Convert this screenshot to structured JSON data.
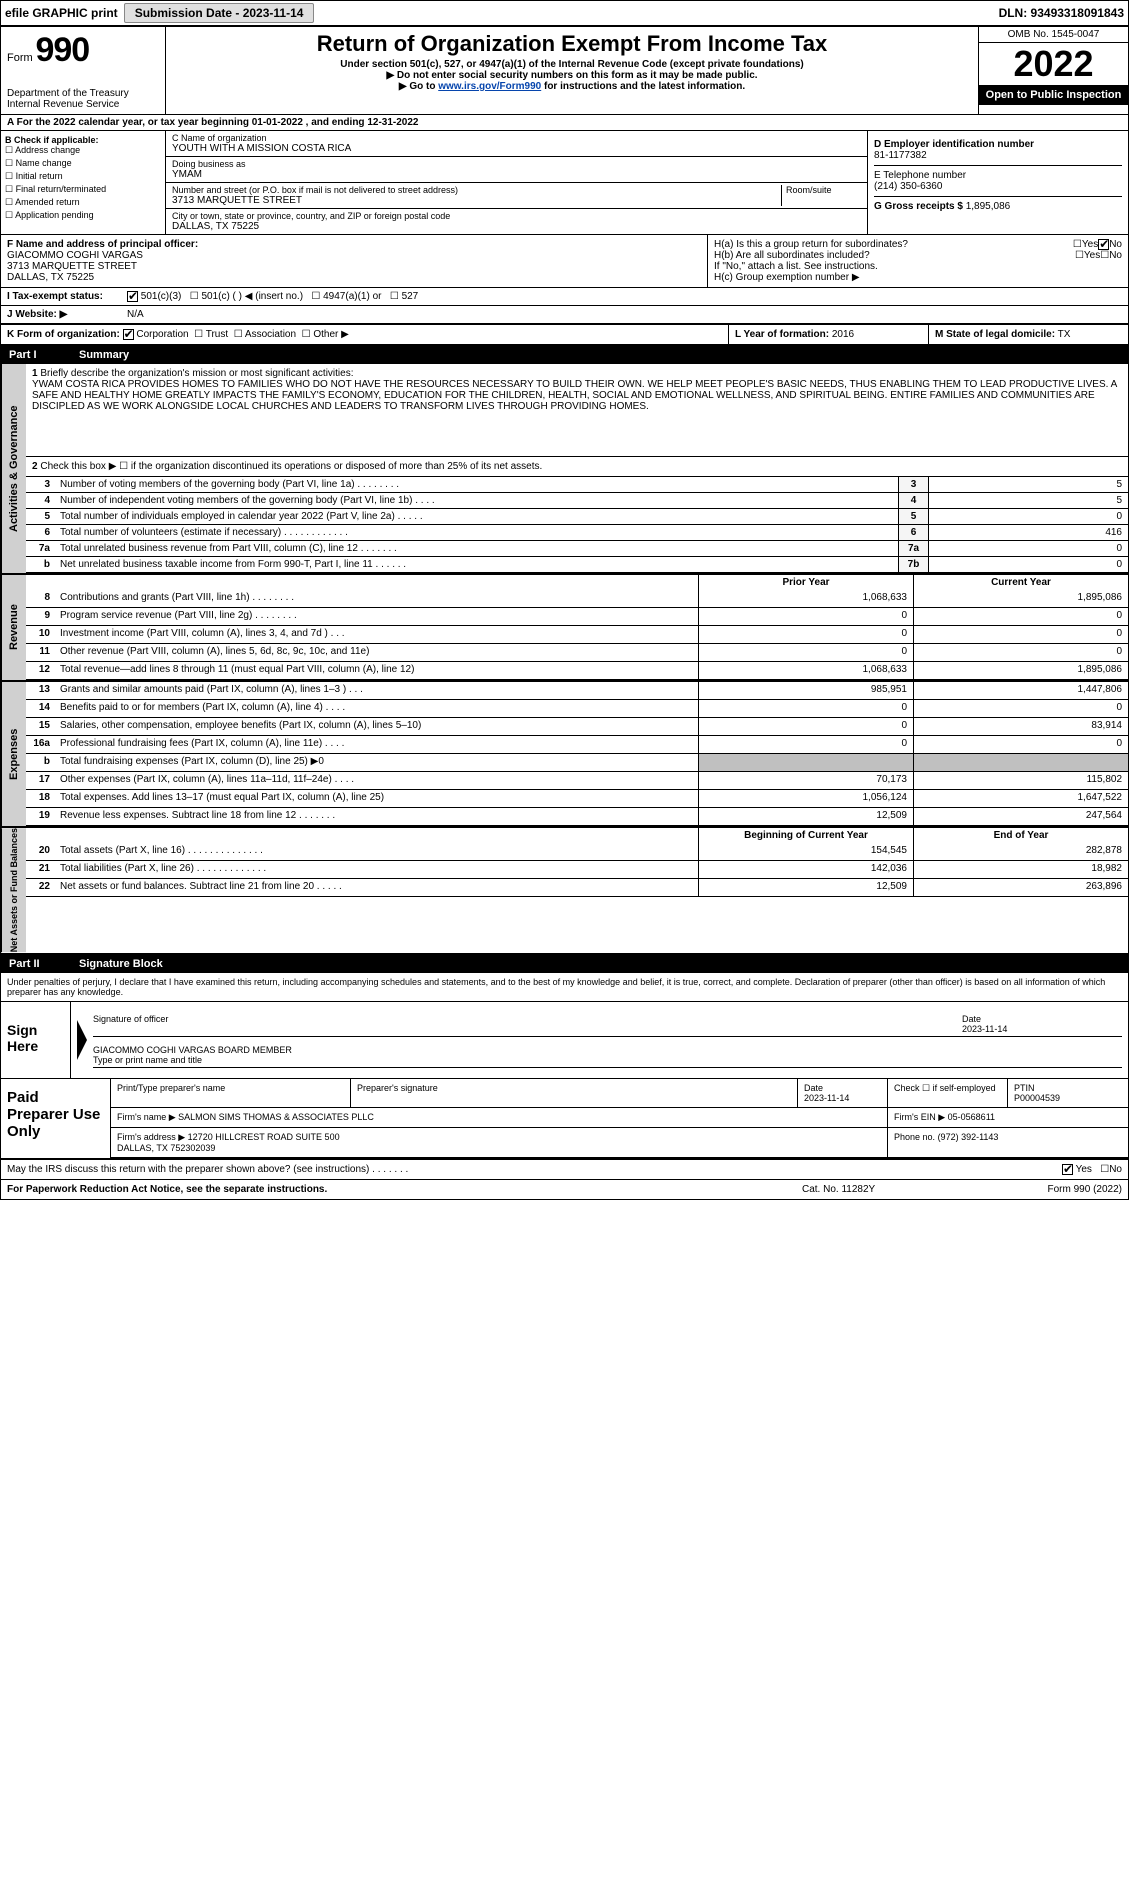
{
  "top_bar": {
    "efile_label": "efile GRAPHIC print",
    "submission_label": "Submission Date - 2023-11-14",
    "dln_label": "DLN: 93493318091843"
  },
  "header": {
    "form_prefix": "Form",
    "form_number": "990",
    "dept": "Department of the Treasury\nInternal Revenue Service",
    "title": "Return of Organization Exempt From Income Tax",
    "subtitle": "Under section 501(c), 527, or 4947(a)(1) of the Internal Revenue Code (except private foundations)",
    "note1": "▶ Do not enter social security numbers on this form as it may be made public.",
    "note2_prefix": "▶ Go to ",
    "note2_link": "www.irs.gov/Form990",
    "note2_suffix": " for instructions and the latest information.",
    "omb": "OMB No. 1545-0047",
    "year": "2022",
    "inspection": "Open to Public Inspection"
  },
  "line_a": "A For the 2022 calendar year, or tax year beginning 01-01-2022  , and ending 12-31-2022",
  "box_b": {
    "header": "B Check if applicable:",
    "items": [
      "Address change",
      "Name change",
      "Initial return",
      "Final return/terminated",
      "Amended return",
      "Application pending"
    ]
  },
  "box_c": {
    "name_label": "C Name of organization",
    "name": "YOUTH WITH A MISSION COSTA RICA",
    "dba_label": "Doing business as",
    "dba": "YMAM",
    "street_label": "Number and street (or P.O. box if mail is not delivered to street address)",
    "street": "3713 MARQUETTE STREET",
    "room_label": "Room/suite",
    "city_label": "City or town, state or province, country, and ZIP or foreign postal code",
    "city": "DALLAS, TX  75225"
  },
  "box_d": {
    "ein_label": "D Employer identification number",
    "ein": "81-1177382",
    "phone_label": "E Telephone number",
    "phone": "(214) 350-6360",
    "gross_label": "G Gross receipts $",
    "gross": "1,895,086"
  },
  "box_f": {
    "label": "F  Name and address of principal officer:",
    "name": "GIACOMMO COGHI VARGAS",
    "street": "3713 MARQUETTE STREET",
    "city": "DALLAS, TX  75225"
  },
  "box_h": {
    "ha": "H(a)  Is this a group return for subordinates?",
    "hb": "H(b)  Are all subordinates included?",
    "hb_note": "If \"No,\" attach a list. See instructions.",
    "hc": "H(c)  Group exemption number ▶",
    "yes": "Yes",
    "no": "No"
  },
  "row_i": {
    "label": "I  Tax-exempt status:",
    "opt1": "501(c)(3)",
    "opt2": "501(c) (   ) ◀ (insert no.)",
    "opt3": "4947(a)(1) or",
    "opt4": "527"
  },
  "row_j": {
    "label": "J  Website: ▶",
    "value": "N/A"
  },
  "row_k": {
    "label": "K Form of organization:",
    "opts": [
      "Corporation",
      "Trust",
      "Association",
      "Other ▶"
    ]
  },
  "row_l": {
    "label": "L Year of formation:",
    "value": "2016"
  },
  "row_m": {
    "label": "M State of legal domicile:",
    "value": "TX"
  },
  "parts": {
    "p1_num": "Part I",
    "p1_title": "Summary",
    "p2_num": "Part II",
    "p2_title": "Signature Block"
  },
  "side_tabs": {
    "ag": "Activities & Governance",
    "rev": "Revenue",
    "exp": "Expenses",
    "nab": "Net Assets or Fund Balances"
  },
  "summary": {
    "line1_label": "Briefly describe the organization's mission or most significant activities:",
    "mission": "YWAM COSTA RICA PROVIDES HOMES TO FAMILIES WHO DO NOT HAVE THE RESOURCES NECESSARY TO BUILD THEIR OWN. WE HELP MEET PEOPLE'S BASIC NEEDS, THUS ENABLING THEM TO LEAD PRODUCTIVE LIVES. A SAFE AND HEALTHY HOME GREATLY IMPACTS THE FAMILY'S ECONOMY, EDUCATION FOR THE CHILDREN, HEALTH, SOCIAL AND EMOTIONAL WELLNESS, AND SPIRITUAL BEING. ENTIRE FAMILIES AND COMMUNITIES ARE DISCIPLED AS WE WORK ALONGSIDE LOCAL CHURCHES AND LEADERS TO TRANSFORM LIVES THROUGH PROVIDING HOMES.",
    "line2": "Check this box ▶ ☐ if the organization discontinued its operations or disposed of more than 25% of its net assets.",
    "lines_numbered": [
      {
        "n": "3",
        "desc": "Number of voting members of the governing body (Part VI, line 1a)  .   .   .   .   .   .   .   .",
        "cell": "3",
        "val": "5"
      },
      {
        "n": "4",
        "desc": "Number of independent voting members of the governing body (Part VI, line 1b)  .   .   .   .",
        "cell": "4",
        "val": "5"
      },
      {
        "n": "5",
        "desc": "Total number of individuals employed in calendar year 2022 (Part V, line 2a)  .   .   .   .   .",
        "cell": "5",
        "val": "0"
      },
      {
        "n": "6",
        "desc": "Total number of volunteers (estimate if necessary)  .   .   .   .   .   .   .   .   .   .   .   .",
        "cell": "6",
        "val": "416"
      },
      {
        "n": "7a",
        "desc": "Total unrelated business revenue from Part VIII, column (C), line 12  .   .   .   .   .   .   .",
        "cell": "7a",
        "val": "0"
      },
      {
        "n": "b",
        "desc": "Net unrelated business taxable income from Form 990-T, Part I, line 11  .   .   .   .   .   .",
        "cell": "7b",
        "val": "0"
      }
    ],
    "col_headers": {
      "py": "Prior Year",
      "cy": "Current Year",
      "boy": "Beginning of Current Year",
      "eoy": "End of Year"
    },
    "revenue": [
      {
        "n": "8",
        "desc": "Contributions and grants (Part VIII, line 1h)  .   .   .   .   .   .   .   .",
        "c1": "1,068,633",
        "c2": "1,895,086"
      },
      {
        "n": "9",
        "desc": "Program service revenue (Part VIII, line 2g)  .   .   .   .   .   .   .   .",
        "c1": "0",
        "c2": "0"
      },
      {
        "n": "10",
        "desc": "Investment income (Part VIII, column (A), lines 3, 4, and 7d )  .   .   .",
        "c1": "0",
        "c2": "0"
      },
      {
        "n": "11",
        "desc": "Other revenue (Part VIII, column (A), lines 5, 6d, 8c, 9c, 10c, and 11e)",
        "c1": "0",
        "c2": "0"
      },
      {
        "n": "12",
        "desc": "Total revenue—add lines 8 through 11 (must equal Part VIII, column (A), line 12)",
        "c1": "1,068,633",
        "c2": "1,895,086"
      }
    ],
    "expenses": [
      {
        "n": "13",
        "desc": "Grants and similar amounts paid (Part IX, column (A), lines 1–3 )  .   .   .",
        "c1": "985,951",
        "c2": "1,447,806"
      },
      {
        "n": "14",
        "desc": "Benefits paid to or for members (Part IX, column (A), line 4)  .   .   .   .",
        "c1": "0",
        "c2": "0"
      },
      {
        "n": "15",
        "desc": "Salaries, other compensation, employee benefits (Part IX, column (A), lines 5–10)",
        "c1": "0",
        "c2": "83,914"
      },
      {
        "n": "16a",
        "desc": "Professional fundraising fees (Part IX, column (A), line 11e)  .   .   .   .",
        "c1": "0",
        "c2": "0"
      },
      {
        "n": "b",
        "desc": "Total fundraising expenses (Part IX, column (D), line 25) ▶0",
        "shaded": true
      },
      {
        "n": "17",
        "desc": "Other expenses (Part IX, column (A), lines 11a–11d, 11f–24e)  .   .   .   .",
        "c1": "70,173",
        "c2": "115,802"
      },
      {
        "n": "18",
        "desc": "Total expenses. Add lines 13–17 (must equal Part IX, column (A), line 25)",
        "c1": "1,056,124",
        "c2": "1,647,522"
      },
      {
        "n": "19",
        "desc": "Revenue less expenses. Subtract line 18 from line 12  .   .   .   .   .   .   .",
        "c1": "12,509",
        "c2": "247,564"
      }
    ],
    "net_assets": [
      {
        "n": "20",
        "desc": "Total assets (Part X, line 16)  .   .   .   .   .   .   .   .   .   .   .   .   .   .",
        "c1": "154,545",
        "c2": "282,878"
      },
      {
        "n": "21",
        "desc": "Total liabilities (Part X, line 26)  .   .   .   .   .   .   .   .   .   .   .   .   .",
        "c1": "142,036",
        "c2": "18,982"
      },
      {
        "n": "22",
        "desc": "Net assets or fund balances. Subtract line 21 from line 20  .   .   .   .   .",
        "c1": "12,509",
        "c2": "263,896"
      }
    ]
  },
  "penalty": "Under penalties of perjury, I declare that I have examined this return, including accompanying schedules and statements, and to the best of my knowledge and belief, it is true, correct, and complete. Declaration of preparer (other than officer) is based on all information of which preparer has any knowledge.",
  "sign": {
    "label": "Sign Here",
    "sig_of_officer": "Signature of officer",
    "date_label": "Date",
    "date": "2023-11-14",
    "name": "GIACOMMO COGHI VARGAS BOARD MEMBER",
    "name_label": "Type or print name and title"
  },
  "preparer": {
    "label": "Paid Preparer Use Only",
    "h1": "Print/Type preparer's name",
    "h2": "Preparer's signature",
    "h3": "Date",
    "date": "2023-11-14",
    "h4_a": "Check ☐ if self-employed",
    "h5": "PTIN",
    "ptin": "P00004539",
    "firm_name_label": "Firm's name    ▶",
    "firm_name": "SALMON SIMS THOMAS & ASSOCIATES PLLC",
    "firm_ein_label": "Firm's EIN ▶",
    "firm_ein": "05-0568611",
    "firm_addr_label": "Firm's address ▶",
    "firm_addr": "12720 HILLCREST ROAD SUITE 500\nDALLAS, TX  752302039",
    "phone_label": "Phone no.",
    "phone": "(972) 392-1143"
  },
  "footer": {
    "discuss": "May the IRS discuss this return with the preparer shown above? (see instructions)  .   .   .   .   .   .   .",
    "yes": "Yes",
    "no": "No",
    "pra": "For Paperwork Reduction Act Notice, see the separate instructions.",
    "cat": "Cat. No. 11282Y",
    "form": "Form 990 (2022)"
  },
  "colors": {
    "link": "#0645ad",
    "black_bg": "#000000",
    "side_tab_bg": "#d0d0d0",
    "shaded_cell": "#c0c0c0"
  }
}
